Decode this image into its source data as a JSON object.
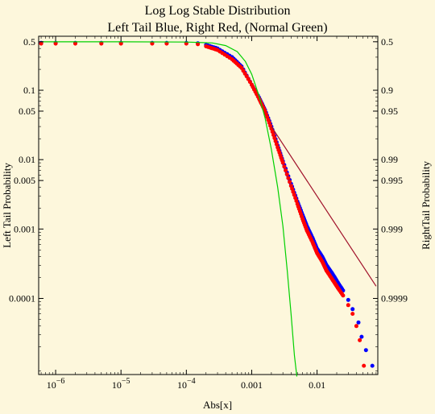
{
  "chart_data": {
    "type": "scatter",
    "title": "Log Log Stable Distribution",
    "subtitle": "Left Tail Blue, Right Red, (Normal Green)",
    "xlabel": "Abs[x]",
    "ylabel_left": "Left Tail Probability",
    "ylabel_right": "RightTail Probability",
    "x_scale": "log",
    "y_scale": "log",
    "xlim": [
      5.5e-07,
      0.085
    ],
    "ylim": [
      8e-06,
      0.6
    ],
    "x_ticks": [
      {
        "value": 1e-06,
        "base": "10",
        "exp": "−6"
      },
      {
        "value": 1e-05,
        "base": "10",
        "exp": "−5"
      },
      {
        "value": 0.0001,
        "base": "10",
        "exp": "−4"
      },
      {
        "value": 0.001,
        "label": "0.001"
      },
      {
        "value": 0.01,
        "label": "0.01"
      }
    ],
    "y_left_ticks": [
      {
        "value": 0.5,
        "label": "0.5"
      },
      {
        "value": 0.1,
        "label": "0.1"
      },
      {
        "value": 0.05,
        "label": "0.05"
      },
      {
        "value": 0.01,
        "label": "0.01"
      },
      {
        "value": 0.005,
        "label": "0.005"
      },
      {
        "value": 0.001,
        "label": "0.001"
      },
      {
        "value": 0.0001,
        "label": "0.0001"
      }
    ],
    "y_right_ticks": [
      {
        "value": 0.5,
        "label": "0.5"
      },
      {
        "value": 0.1,
        "label": "0.9"
      },
      {
        "value": 0.05,
        "label": "0.95"
      },
      {
        "value": 0.01,
        "label": "0.99"
      },
      {
        "value": 0.005,
        "label": "0.995"
      },
      {
        "value": 0.001,
        "label": "0.999"
      },
      {
        "value": 0.0001,
        "label": "0.9999"
      }
    ],
    "series": [
      {
        "color": "#0000ff",
        "marker": "dot",
        "points": [
          [
            6e-07,
            0.48
          ],
          [
            1e-06,
            0.48
          ],
          [
            2e-06,
            0.48
          ],
          [
            5e-06,
            0.48
          ],
          [
            1e-05,
            0.48
          ],
          [
            3e-05,
            0.48
          ],
          [
            5e-05,
            0.48
          ],
          [
            0.0001,
            0.48
          ],
          [
            0.00015,
            0.475
          ],
          [
            0.0002,
            0.45
          ],
          [
            0.0003,
            0.4
          ],
          [
            0.0005,
            0.3
          ],
          [
            0.0007,
            0.22
          ],
          [
            0.001,
            0.12
          ],
          [
            0.0013,
            0.078
          ],
          [
            0.0016,
            0.052
          ],
          [
            0.002,
            0.03
          ],
          [
            0.0025,
            0.016
          ],
          [
            0.003,
            0.0095
          ],
          [
            0.004,
            0.0045
          ],
          [
            0.005,
            0.0025
          ],
          [
            0.006,
            0.0016
          ],
          [
            0.007,
            0.0011
          ],
          [
            0.0085,
            0.00075
          ],
          [
            0.01,
            0.00052
          ],
          [
            0.012,
            0.0004
          ],
          [
            0.014,
            0.0003
          ],
          [
            0.017,
            0.00023
          ],
          [
            0.02,
            0.00018
          ],
          [
            0.025,
            0.00013
          ],
          [
            0.03,
            9.5e-05
          ],
          [
            0.035,
            7e-05
          ],
          [
            0.043,
            4.5e-05
          ],
          [
            0.048,
            2.8e-05
          ],
          [
            0.056,
            1.8e-05
          ],
          [
            0.07,
            1.07e-05
          ]
        ]
      },
      {
        "color": "#ff0000",
        "marker": "dot",
        "points": [
          [
            6e-07,
            0.47
          ],
          [
            1e-06,
            0.47
          ],
          [
            2e-06,
            0.47
          ],
          [
            5e-06,
            0.47
          ],
          [
            1e-05,
            0.47
          ],
          [
            3e-05,
            0.47
          ],
          [
            5e-05,
            0.47
          ],
          [
            0.0001,
            0.47
          ],
          [
            0.00015,
            0.46
          ],
          [
            0.0002,
            0.43
          ],
          [
            0.0003,
            0.38
          ],
          [
            0.0005,
            0.28
          ],
          [
            0.0007,
            0.21
          ],
          [
            0.001,
            0.12
          ],
          [
            0.0013,
            0.075
          ],
          [
            0.0016,
            0.05
          ],
          [
            0.002,
            0.028
          ],
          [
            0.0025,
            0.015
          ],
          [
            0.003,
            0.009
          ],
          [
            0.004,
            0.0042
          ],
          [
            0.005,
            0.0023
          ],
          [
            0.006,
            0.0014
          ],
          [
            0.007,
            0.00095
          ],
          [
            0.0085,
            0.00065
          ],
          [
            0.01,
            0.00045
          ],
          [
            0.012,
            0.00034
          ],
          [
            0.014,
            0.00025
          ],
          [
            0.017,
            0.00019
          ],
          [
            0.02,
            0.00015
          ],
          [
            0.025,
            0.00011
          ],
          [
            0.03,
            8e-05
          ],
          [
            0.035,
            6e-05
          ],
          [
            0.04,
            4e-05
          ],
          [
            0.045,
            2.5e-05
          ],
          [
            0.052,
            1.07e-05
          ]
        ]
      },
      {
        "color": "#00d000",
        "marker": "line",
        "points": [
          [
            6e-07,
            0.499
          ],
          [
            1e-05,
            0.499
          ],
          [
            0.0001,
            0.495
          ],
          [
            0.00025,
            0.48
          ],
          [
            0.0004,
            0.44
          ],
          [
            0.0006,
            0.36
          ],
          [
            0.0008,
            0.26
          ],
          [
            0.001,
            0.17
          ],
          [
            0.0013,
            0.082
          ],
          [
            0.0016,
            0.04
          ],
          [
            0.002,
            0.014
          ],
          [
            0.0025,
            0.004
          ],
          [
            0.003,
            0.0011
          ],
          [
            0.0035,
            0.00025
          ],
          [
            0.004,
            6e-05
          ],
          [
            0.0045,
            1.5e-05
          ],
          [
            0.0049,
            7.5e-06
          ]
        ]
      },
      {
        "color": "#a0102a",
        "marker": "line",
        "points": [
          [
            0.002,
            0.03
          ],
          [
            0.08,
            0.00015
          ]
        ]
      }
    ]
  }
}
